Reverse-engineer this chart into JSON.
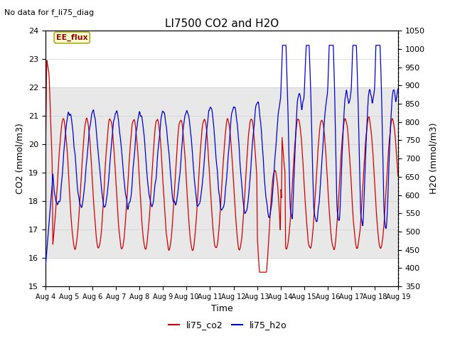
{
  "title": "LI7500 CO2 and H2O",
  "top_left_text": "No data for f_li75_diag",
  "xlabel": "Time",
  "ylabel_left": "CO2 (mmol/m3)",
  "ylabel_right": "H2O (mmol/m3)",
  "ylim_left": [
    15.0,
    24.0
  ],
  "ylim_right": [
    350,
    1050
  ],
  "yticks_left": [
    15.0,
    16.0,
    17.0,
    18.0,
    19.0,
    20.0,
    21.0,
    22.0,
    23.0,
    24.0
  ],
  "yticks_right": [
    350,
    400,
    450,
    500,
    550,
    600,
    650,
    700,
    750,
    800,
    850,
    900,
    950,
    1000,
    1050
  ],
  "xtick_labels": [
    "Aug 4",
    "Aug 5",
    "Aug 6",
    "Aug 7",
    "Aug 8",
    "Aug 9",
    "Aug 10",
    "Aug 11",
    "Aug 12",
    "Aug 13",
    "Aug 14",
    "Aug 15",
    "Aug 16",
    "Aug 17",
    "Aug 18",
    "Aug 19"
  ],
  "shaded_region": [
    16.0,
    22.0
  ],
  "legend_label_co2": "li75_co2",
  "legend_label_h2o": "li75_h2o",
  "ee_flux_label": "EE_flux",
  "color_co2": "#cc0000",
  "color_h2o": "#0000cc",
  "background_color": "#ffffff",
  "shaded_color": "#e8e8e8",
  "title_fontsize": 11,
  "axis_label_fontsize": 9,
  "tick_fontsize": 8,
  "legend_fontsize": 9,
  "n_days": 15,
  "pts_per_day": 288
}
